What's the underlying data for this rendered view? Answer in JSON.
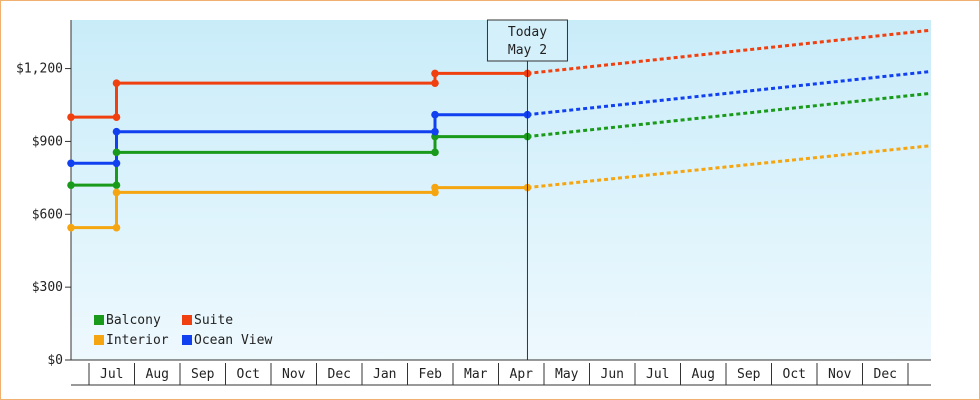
{
  "chart_data": {
    "type": "line",
    "x_axis": {
      "months": [
        "Jul",
        "Aug",
        "Sep",
        "Oct",
        "Nov",
        "Dec",
        "Jan",
        "Feb",
        "Mar",
        "Apr",
        "May",
        "Jun",
        "Jul",
        "Aug",
        "Sep",
        "Oct",
        "Nov",
        "Dec"
      ],
      "start_date": "2023-07-01"
    },
    "y_axis": {
      "ticks": [
        0,
        300,
        600,
        900,
        1200
      ],
      "tick_labels": [
        "$0",
        "$300",
        "$600",
        "$900",
        "$1,200"
      ],
      "ylim": [
        0,
        1400
      ]
    },
    "today": {
      "label_line1": "Today",
      "label_line2": "May 2",
      "date": "2024-05-02"
    },
    "series": [
      {
        "name": "Balcony",
        "color": "#1a9a1a",
        "points": [
          [
            "2023-07-01",
            720
          ],
          [
            "2023-08-01",
            720
          ],
          [
            "2023-08-01",
            855
          ],
          [
            "2024-03-01",
            855
          ],
          [
            "2024-03-01",
            920
          ],
          [
            "2024-05-02",
            920
          ]
        ],
        "forecast": [
          [
            "2024-05-02",
            920
          ],
          [
            "2025-01-01",
            1080
          ]
        ]
      },
      {
        "name": "Suite",
        "color": "#f04010",
        "points": [
          [
            "2023-07-01",
            1000
          ],
          [
            "2023-08-01",
            1000
          ],
          [
            "2023-08-01",
            1140
          ],
          [
            "2024-03-01",
            1140
          ],
          [
            "2024-03-01",
            1180
          ],
          [
            "2024-05-02",
            1180
          ]
        ],
        "forecast": [
          [
            "2024-05-02",
            1180
          ],
          [
            "2025-01-01",
            1340
          ]
        ]
      },
      {
        "name": "Interior",
        "color": "#f5a510",
        "points": [
          [
            "2023-07-01",
            545
          ],
          [
            "2023-08-01",
            545
          ],
          [
            "2023-08-01",
            690
          ],
          [
            "2024-03-01",
            690
          ],
          [
            "2024-03-01",
            710
          ],
          [
            "2024-05-02",
            710
          ]
        ],
        "forecast": [
          [
            "2024-05-02",
            710
          ],
          [
            "2025-01-01",
            865
          ]
        ]
      },
      {
        "name": "Ocean View",
        "color": "#1040f0",
        "points": [
          [
            "2023-07-01",
            810
          ],
          [
            "2023-08-01",
            810
          ],
          [
            "2023-08-01",
            940
          ],
          [
            "2024-03-01",
            940
          ],
          [
            "2024-03-01",
            1010
          ],
          [
            "2024-05-02",
            1010
          ]
        ],
        "forecast": [
          [
            "2024-05-02",
            1010
          ],
          [
            "2025-01-01",
            1170
          ]
        ]
      }
    ],
    "legend": {
      "placement": "bottom-left",
      "order": [
        [
          "Balcony",
          "Suite"
        ],
        [
          "Interior",
          "Ocean View"
        ]
      ]
    },
    "grid": false
  }
}
